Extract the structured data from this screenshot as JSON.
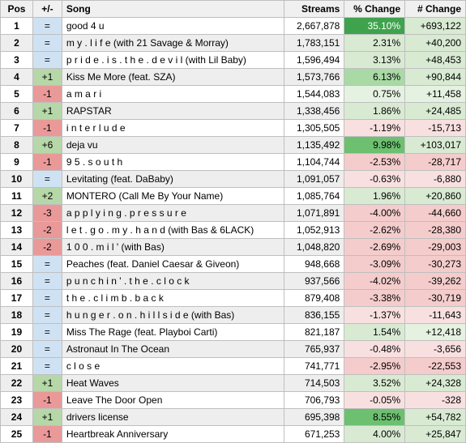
{
  "columns": [
    "Pos",
    "+/-",
    "Song",
    "Streams",
    "% Change",
    "# Change"
  ],
  "colors": {
    "header_bg": "#f0f0f0",
    "border": "#bfbfbf",
    "even_row": "#eeeeee",
    "odd_row": "#ffffff",
    "pm_eq": "#cfe2f3",
    "pm_up": "#b6d7a8",
    "pm_down": "#ea9999",
    "green_max": "#3fa34d",
    "green_strong": "#6cc070",
    "green_mid": "#a9d9a5",
    "green_light": "#d9ead3",
    "green_faint": "#e6f2e1",
    "red_light": "#f4cccc",
    "red_faint": "#f9e0e0",
    "numchg_up": "#d9ead3",
    "numchg_down": "#f4cccc",
    "numchg_faint_up": "#e6f2e1",
    "numchg_faint_down": "#f9e0e0"
  },
  "rows": [
    {
      "pos": "1",
      "pm": "=",
      "song": "good 4 u",
      "streams": "2,667,878",
      "pct": "35.10%",
      "num": "+693,122",
      "pm_bg": "pm_eq",
      "pct_bg": "green_max",
      "num_bg": "numchg_up"
    },
    {
      "pos": "2",
      "pm": "=",
      "song": "m y . l i f e (with 21 Savage & Morray)",
      "streams": "1,783,151",
      "pct": "2.31%",
      "num": "+40,200",
      "pm_bg": "pm_eq",
      "pct_bg": "green_light",
      "num_bg": "numchg_up"
    },
    {
      "pos": "3",
      "pm": "=",
      "song": "p r i d e . i s . t h e . d e v i l (with Lil Baby)",
      "streams": "1,596,494",
      "pct": "3.13%",
      "num": "+48,453",
      "pm_bg": "pm_eq",
      "pct_bg": "green_light",
      "num_bg": "numchg_up"
    },
    {
      "pos": "4",
      "pm": "+1",
      "song": "Kiss Me More (feat. SZA)",
      "streams": "1,573,766",
      "pct": "6.13%",
      "num": "+90,844",
      "pm_bg": "pm_up",
      "pct_bg": "green_mid",
      "num_bg": "numchg_up"
    },
    {
      "pos": "5",
      "pm": "-1",
      "song": "a m a r i",
      "streams": "1,544,083",
      "pct": "0.75%",
      "num": "+11,458",
      "pm_bg": "pm_down",
      "pct_bg": "green_faint",
      "num_bg": "numchg_faint_up"
    },
    {
      "pos": "6",
      "pm": "+1",
      "song": "RAPSTAR",
      "streams": "1,338,456",
      "pct": "1.86%",
      "num": "+24,485",
      "pm_bg": "pm_up",
      "pct_bg": "green_light",
      "num_bg": "numchg_up"
    },
    {
      "pos": "7",
      "pm": "-1",
      "song": "i n t e r l u d e",
      "streams": "1,305,505",
      "pct": "-1.19%",
      "num": "-15,713",
      "pm_bg": "pm_down",
      "pct_bg": "red_faint",
      "num_bg": "numchg_faint_down"
    },
    {
      "pos": "8",
      "pm": "+6",
      "song": "deja vu",
      "streams": "1,135,492",
      "pct": "9.98%",
      "num": "+103,017",
      "pm_bg": "pm_up",
      "pct_bg": "green_strong",
      "num_bg": "numchg_up"
    },
    {
      "pos": "9",
      "pm": "-1",
      "song": "9 5 . s o u t h",
      "streams": "1,104,744",
      "pct": "-2.53%",
      "num": "-28,717",
      "pm_bg": "pm_down",
      "pct_bg": "red_light",
      "num_bg": "numchg_down"
    },
    {
      "pos": "10",
      "pm": "=",
      "song": "Levitating (feat. DaBaby)",
      "streams": "1,091,057",
      "pct": "-0.63%",
      "num": "-6,880",
      "pm_bg": "pm_eq",
      "pct_bg": "red_faint",
      "num_bg": "numchg_faint_down"
    },
    {
      "pos": "11",
      "pm": "+2",
      "song": "MONTERO (Call Me By Your Name)",
      "streams": "1,085,764",
      "pct": "1.96%",
      "num": "+20,860",
      "pm_bg": "pm_up",
      "pct_bg": "green_light",
      "num_bg": "numchg_up"
    },
    {
      "pos": "12",
      "pm": "-3",
      "song": "a p p l y i n g . p r e s s u r e",
      "streams": "1,071,891",
      "pct": "-4.00%",
      "num": "-44,660",
      "pm_bg": "pm_down",
      "pct_bg": "red_light",
      "num_bg": "numchg_down"
    },
    {
      "pos": "13",
      "pm": "-2",
      "song": "l e t . g o . m y . h a n d (with Bas & 6LACK)",
      "streams": "1,052,913",
      "pct": "-2.62%",
      "num": "-28,380",
      "pm_bg": "pm_down",
      "pct_bg": "red_light",
      "num_bg": "numchg_down"
    },
    {
      "pos": "14",
      "pm": "-2",
      "song": "1 0 0 . m i l ' (with Bas)",
      "streams": "1,048,820",
      "pct": "-2.69%",
      "num": "-29,003",
      "pm_bg": "pm_down",
      "pct_bg": "red_light",
      "num_bg": "numchg_down"
    },
    {
      "pos": "15",
      "pm": "=",
      "song": "Peaches (feat. Daniel Caesar & Giveon)",
      "streams": "948,668",
      "pct": "-3.09%",
      "num": "-30,273",
      "pm_bg": "pm_eq",
      "pct_bg": "red_light",
      "num_bg": "numchg_down"
    },
    {
      "pos": "16",
      "pm": "=",
      "song": "p u n c h i n ' . t h e . c l o c k",
      "streams": "937,566",
      "pct": "-4.02%",
      "num": "-39,262",
      "pm_bg": "pm_eq",
      "pct_bg": "red_light",
      "num_bg": "numchg_down"
    },
    {
      "pos": "17",
      "pm": "=",
      "song": "t h e . c l i m b . b a c k",
      "streams": "879,408",
      "pct": "-3.38%",
      "num": "-30,719",
      "pm_bg": "pm_eq",
      "pct_bg": "red_light",
      "num_bg": "numchg_down"
    },
    {
      "pos": "18",
      "pm": "=",
      "song": "h u n g e r . o n . h i l l s i d e (with Bas)",
      "streams": "836,155",
      "pct": "-1.37%",
      "num": "-11,643",
      "pm_bg": "pm_eq",
      "pct_bg": "red_faint",
      "num_bg": "numchg_faint_down"
    },
    {
      "pos": "19",
      "pm": "=",
      "song": "Miss The Rage (feat. Playboi Carti)",
      "streams": "821,187",
      "pct": "1.54%",
      "num": "+12,418",
      "pm_bg": "pm_eq",
      "pct_bg": "green_light",
      "num_bg": "numchg_faint_up"
    },
    {
      "pos": "20",
      "pm": "=",
      "song": "Astronaut In The Ocean",
      "streams": "765,937",
      "pct": "-0.48%",
      "num": "-3,656",
      "pm_bg": "pm_eq",
      "pct_bg": "red_faint",
      "num_bg": "numchg_faint_down"
    },
    {
      "pos": "21",
      "pm": "=",
      "song": "c l o s e",
      "streams": "741,771",
      "pct": "-2.95%",
      "num": "-22,553",
      "pm_bg": "pm_eq",
      "pct_bg": "red_light",
      "num_bg": "numchg_down"
    },
    {
      "pos": "22",
      "pm": "+1",
      "song": "Heat Waves",
      "streams": "714,503",
      "pct": "3.52%",
      "num": "+24,328",
      "pm_bg": "pm_up",
      "pct_bg": "green_light",
      "num_bg": "numchg_up"
    },
    {
      "pos": "23",
      "pm": "-1",
      "song": "Leave The Door Open",
      "streams": "706,793",
      "pct": "-0.05%",
      "num": "-328",
      "pm_bg": "pm_down",
      "pct_bg": "red_faint",
      "num_bg": "numchg_faint_down"
    },
    {
      "pos": "24",
      "pm": "+1",
      "song": "drivers license",
      "streams": "695,398",
      "pct": "8.55%",
      "num": "+54,782",
      "pm_bg": "pm_up",
      "pct_bg": "green_strong",
      "num_bg": "numchg_up"
    },
    {
      "pos": "25",
      "pm": "-1",
      "song": "Heartbreak Anniversary",
      "streams": "671,253",
      "pct": "4.00%",
      "num": "+25,847",
      "pm_bg": "pm_down",
      "pct_bg": "green_light",
      "num_bg": "numchg_up"
    }
  ]
}
